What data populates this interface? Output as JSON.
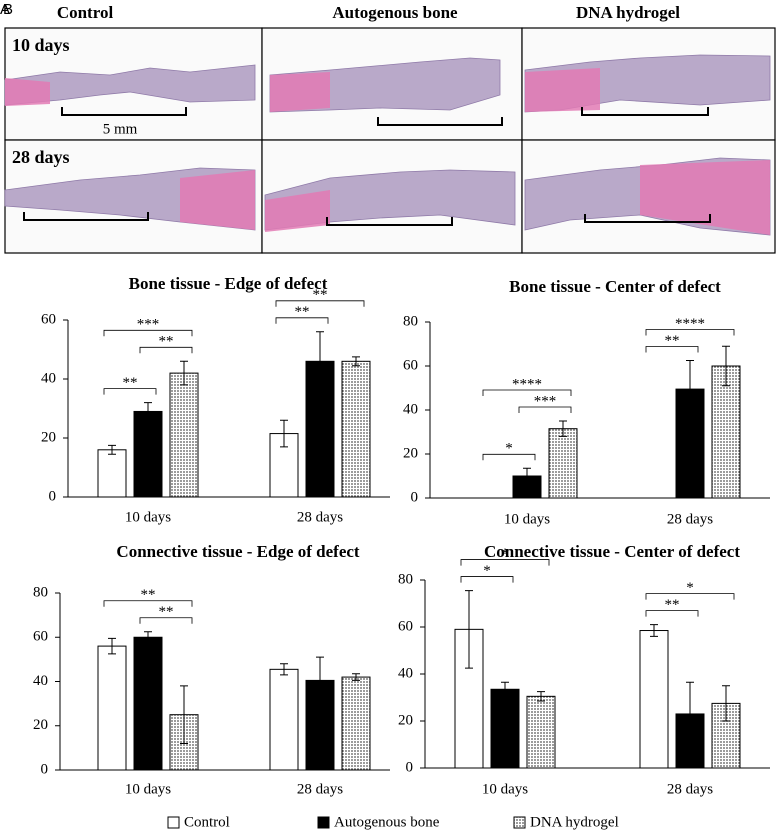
{
  "panel_labels": [
    "A",
    "B"
  ],
  "histology": {
    "columns": [
      "Control",
      "Autogenous bone",
      "DNA hydrogel"
    ],
    "rows": [
      "10 days",
      "28 days"
    ],
    "scale_label": "5 mm"
  },
  "chart_data": [
    {
      "type": "bar",
      "title": "Bone tissue - Edge of defect",
      "categories": [
        "10 days",
        "28 days"
      ],
      "series": [
        {
          "name": "Control",
          "color": "#ffffff",
          "values": [
            16,
            21.5
          ],
          "errors": [
            1.5,
            4.5
          ]
        },
        {
          "name": "Autogenous bone",
          "color": "#000000",
          "values": [
            29,
            46
          ],
          "errors": [
            3,
            10
          ]
        },
        {
          "name": "DNA hydrogel",
          "color": "#c8c8c8",
          "pattern": "dots",
          "values": [
            42,
            46
          ],
          "errors": [
            4,
            1.5
          ]
        }
      ],
      "ylim": [
        0,
        60
      ],
      "yticks": [
        0,
        20,
        40,
        60
      ],
      "brackets": [
        {
          "category": 0,
          "from": 0,
          "to": 1,
          "label": "**"
        },
        {
          "category": 0,
          "from": 1,
          "to": 2,
          "label": "**"
        },
        {
          "category": 0,
          "from": 0,
          "to": 2,
          "label": "***"
        },
        {
          "category": 1,
          "from": 0,
          "to": 1,
          "label": "**"
        },
        {
          "category": 1,
          "from": 0,
          "to": 2,
          "label": "**"
        }
      ]
    },
    {
      "type": "bar",
      "title": "Bone tissue - Center of defect",
      "categories": [
        "10 days",
        "28 days"
      ],
      "series": [
        {
          "name": "Control",
          "color": "#ffffff",
          "values": [
            0,
            0
          ],
          "errors": [
            0,
            0
          ]
        },
        {
          "name": "Autogenous bone",
          "color": "#000000",
          "values": [
            10,
            49.5
          ],
          "errors": [
            3.5,
            13
          ]
        },
        {
          "name": "DNA hydrogel",
          "color": "#c8c8c8",
          "pattern": "dots",
          "values": [
            31.5,
            60
          ],
          "errors": [
            3.5,
            9
          ]
        }
      ],
      "ylim": [
        0,
        80
      ],
      "yticks": [
        0,
        20,
        40,
        60,
        80
      ],
      "brackets": [
        {
          "category": 0,
          "from": 0,
          "to": 1,
          "label": "*"
        },
        {
          "category": 0,
          "from": 1,
          "to": 2,
          "label": "***"
        },
        {
          "category": 0,
          "from": 0,
          "to": 2,
          "label": "****"
        },
        {
          "category": 1,
          "from": 0,
          "to": 1,
          "label": "**"
        },
        {
          "category": 1,
          "from": 0,
          "to": 2,
          "label": "****"
        }
      ]
    },
    {
      "type": "bar",
      "title": "Connective tissue - Edge of defect",
      "categories": [
        "10 days",
        "28 days"
      ],
      "series": [
        {
          "name": "Control",
          "color": "#ffffff",
          "values": [
            56,
            45.5
          ],
          "errors": [
            3.5,
            2.5
          ]
        },
        {
          "name": "Autogenous bone",
          "color": "#000000",
          "values": [
            60,
            40.5
          ],
          "errors": [
            2.5,
            10.5
          ]
        },
        {
          "name": "DNA hydrogel",
          "color": "#c8c8c8",
          "pattern": "dots",
          "values": [
            25,
            42
          ],
          "errors": [
            13,
            1.5
          ]
        }
      ],
      "ylim": [
        0,
        80
      ],
      "yticks": [
        0,
        20,
        40,
        60,
        80
      ],
      "brackets": [
        {
          "category": 0,
          "from": 1,
          "to": 2,
          "label": "**"
        },
        {
          "category": 0,
          "from": 0,
          "to": 2,
          "label": "**"
        }
      ]
    },
    {
      "type": "bar",
      "title": "Connective tissue - Center of defect",
      "categories": [
        "10 days",
        "28 days"
      ],
      "series": [
        {
          "name": "Control",
          "color": "#ffffff",
          "values": [
            59,
            58.5
          ],
          "errors": [
            16.5,
            2.5
          ]
        },
        {
          "name": "Autogenous bone",
          "color": "#000000",
          "values": [
            33.5,
            23
          ],
          "errors": [
            3,
            13.5
          ]
        },
        {
          "name": "DNA hydrogel",
          "color": "#c8c8c8",
          "pattern": "dots",
          "values": [
            30.5,
            27.5
          ],
          "errors": [
            2,
            7.5
          ]
        }
      ],
      "ylim": [
        0,
        80
      ],
      "yticks": [
        0,
        20,
        40,
        60,
        80
      ],
      "brackets": [
        {
          "category": 0,
          "from": 0,
          "to": 1,
          "label": "*"
        },
        {
          "category": 0,
          "from": 0,
          "to": 2,
          "label": "*"
        },
        {
          "category": 1,
          "from": 0,
          "to": 1,
          "label": "**"
        },
        {
          "category": 1,
          "from": 0,
          "to": 2,
          "label": "*"
        }
      ]
    }
  ]
}
